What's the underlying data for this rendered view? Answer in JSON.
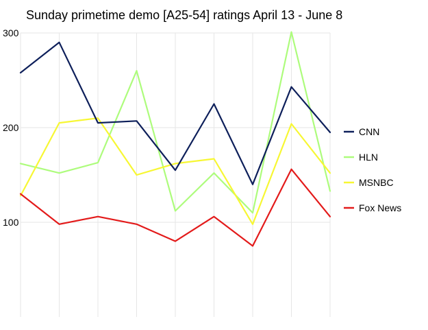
{
  "chart_data": {
    "type": "line",
    "title": "Sunday primetime demo [A25-54] ratings April 13 - June 8",
    "xlabel": "",
    "ylabel": "",
    "ylim": [
      0,
      300
    ],
    "y_ticks": [
      100,
      200,
      300
    ],
    "grid": true,
    "legend_position": "right",
    "x": [
      1,
      2,
      3,
      4,
      5,
      6,
      7,
      8,
      9
    ],
    "series": [
      {
        "name": "CNN",
        "color": "#0d1f5a",
        "values": [
          258,
          290,
          205,
          207,
          155,
          225,
          140,
          243,
          195
        ]
      },
      {
        "name": "HLN",
        "color": "#adfc7c",
        "values": [
          162,
          152,
          163,
          260,
          112,
          152,
          110,
          301,
          133
        ]
      },
      {
        "name": "MSNBC",
        "color": "#f7f733",
        "values": [
          128,
          205,
          210,
          150,
          162,
          167,
          98,
          204,
          152
        ]
      },
      {
        "name": "Fox News",
        "color": "#e31a1a",
        "values": [
          130,
          98,
          106,
          98,
          80,
          106,
          75,
          156,
          106
        ]
      }
    ]
  }
}
